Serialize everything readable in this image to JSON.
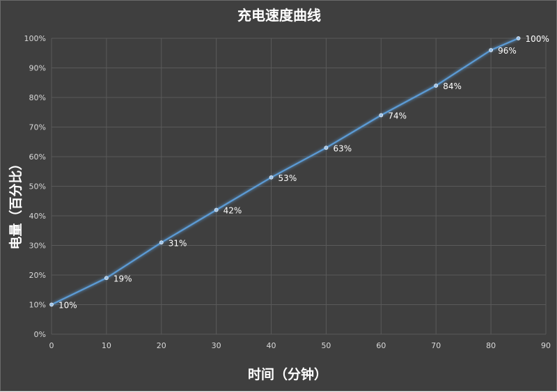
{
  "chart_data": {
    "type": "line",
    "title": "充电速度曲线",
    "xlabel": "时间（分钟）",
    "ylabel": "电量（百分比）",
    "x": [
      0,
      10,
      20,
      30,
      40,
      50,
      60,
      70,
      80,
      85
    ],
    "series": [
      {
        "values": [
          10,
          19,
          31,
          42,
          53,
          63,
          74,
          84,
          96,
          100
        ],
        "labels": [
          "10%",
          "19%",
          "31%",
          "42%",
          "53%",
          "63%",
          "74%",
          "84%",
          "96%",
          "100%"
        ]
      }
    ],
    "xlim": [
      0,
      90
    ],
    "ylim": [
      0,
      100
    ],
    "x_ticks": [
      "0",
      "10",
      "20",
      "30",
      "40",
      "50",
      "60",
      "70",
      "80",
      "90"
    ],
    "y_ticks": [
      "0%",
      "10%",
      "20%",
      "30%",
      "40%",
      "50%",
      "60%",
      "70%",
      "80%",
      "90%",
      "100%"
    ],
    "grid": true,
    "colors": {
      "background": "#3f3f3f",
      "line": "#5b9bd5",
      "grid": "#5a5a5a",
      "text": "#ffffff"
    }
  }
}
